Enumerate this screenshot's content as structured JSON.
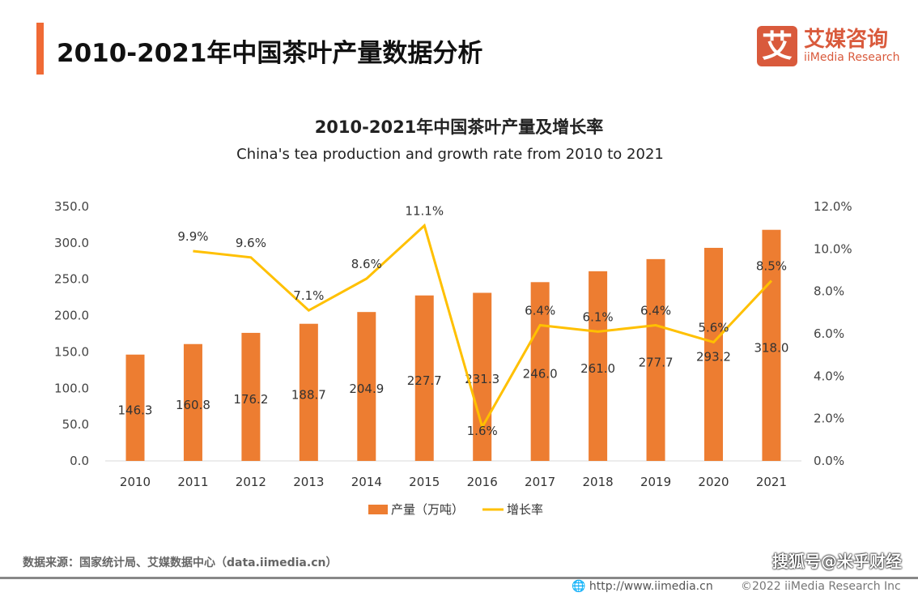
{
  "header": {
    "title": "2010-2021年中国茶叶产量数据分析"
  },
  "logo": {
    "mark": "艾",
    "cn": "艾媒咨询",
    "en": "iiMedia Research"
  },
  "chart_data": {
    "type": "bar+line",
    "title": "2010-2021年中国茶叶产量及增长率",
    "subtitle": "China's tea production and growth rate from 2010 to 2021",
    "categories": [
      "2010",
      "2011",
      "2012",
      "2013",
      "2014",
      "2015",
      "2016",
      "2017",
      "2018",
      "2019",
      "2020",
      "2021"
    ],
    "series": [
      {
        "name": "产量（万吨）",
        "type": "bar",
        "axis": "left",
        "color": "#ed7d31",
        "values": [
          146.3,
          160.8,
          176.2,
          188.7,
          204.9,
          227.7,
          231.3,
          246.0,
          261.0,
          277.7,
          293.2,
          318.0
        ]
      },
      {
        "name": "增长率",
        "type": "line",
        "axis": "right",
        "color": "#ffc000",
        "values": [
          null,
          9.9,
          9.6,
          7.1,
          8.6,
          11.1,
          1.6,
          6.4,
          6.1,
          6.4,
          5.6,
          8.5
        ]
      }
    ],
    "left_axis": {
      "ylim": [
        0,
        350
      ],
      "ticks": [
        "0.0",
        "50.0",
        "100.0",
        "150.0",
        "200.0",
        "250.0",
        "300.0",
        "350.0"
      ]
    },
    "right_axis": {
      "ylim": [
        0,
        12
      ],
      "ticks": [
        "0.0%",
        "2.0%",
        "4.0%",
        "6.0%",
        "8.0%",
        "10.0%",
        "12.0%"
      ]
    },
    "legend": "bottom",
    "grid": false
  },
  "footer": {
    "source": "数据来源：国家统计局、艾媒数据中心（data.iimedia.cn）",
    "url": "http://www.iimedia.cn",
    "copyright": "©2022  iiMedia Research  Inc",
    "watermark": "搜狐号@米乎财经"
  }
}
